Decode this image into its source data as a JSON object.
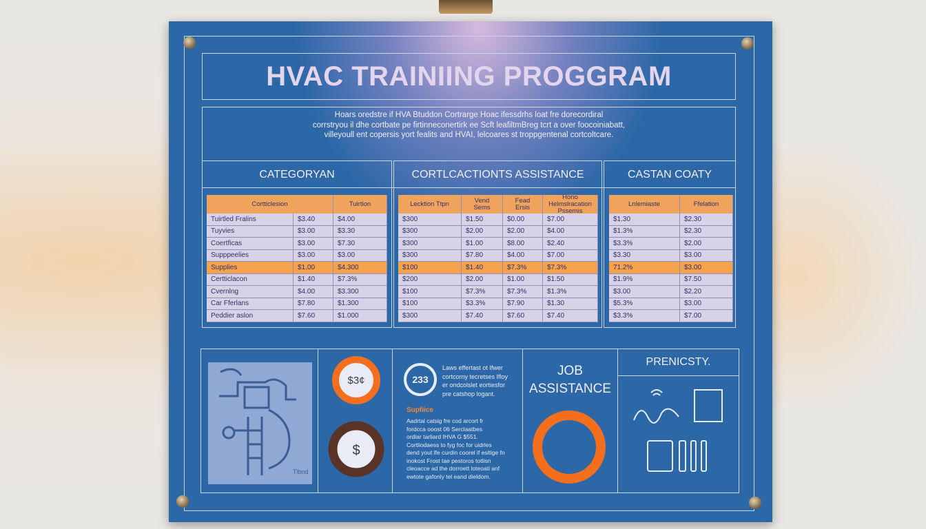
{
  "header": {
    "title": "HVAC TRAINIING PROGGRAM"
  },
  "intro": {
    "lines": [
      "Hoars oredstre if HVA Btuddon Cortrarge Hoac ifessdrhs loat fre dorecordiral",
      "corrstryou il dhe cortbate pe firtinneconertirk ee Scft leafiltmBreg tcrt a over foocoiniabatt,",
      "villeyoull ent copersis yort fealits and HVAI, lelcoares st troppgentenal cortcoltcare."
    ]
  },
  "columns": {
    "titles": [
      "CATEGORYAN",
      "CORTLCACTIONTS ASSISTANCE",
      "CASTAN COATY"
    ]
  },
  "tables": [
    {
      "headers": [
        "Cortticlesion",
        "Tuirtion"
      ],
      "rows": [
        [
          "Tuirtled Fralins",
          "$3.40",
          "$4.00"
        ],
        [
          "Tuyvies",
          "$3.00",
          "$3.30"
        ],
        [
          "Coertficas",
          "$3.00",
          "$7.30"
        ],
        [
          "Supppeelies",
          "$3.00",
          "$3.00"
        ],
        [
          "Supplies",
          "$1.00",
          "$4.300"
        ],
        [
          "Certticlacon",
          "$1.40",
          "$7.3%"
        ],
        [
          "Cvernlng",
          "$4.00",
          "$3.300"
        ],
        [
          "Car Fferlans",
          "$7.80",
          "$1.300"
        ],
        [
          "Peddier aslon",
          "$7.60",
          "$1.000"
        ]
      ]
    },
    {
      "headers": [
        "Lecktion Ttpn",
        "Vend Sems",
        "Fead Ersis",
        "Hono Helmslracation Pssemis"
      ],
      "rows": [
        [
          "$300",
          "$1.50",
          "$0.00",
          "$7.00"
        ],
        [
          "$300",
          "$2.00",
          "$2.00",
          "$4.00"
        ],
        [
          "$300",
          "$1.00",
          "$8.00",
          "$2.40"
        ],
        [
          "$300",
          "$7.80",
          "$4.00",
          "$7.00"
        ],
        [
          "$100",
          "$1.40",
          "$7.3%",
          "$7.3%"
        ],
        [
          "$200",
          "$2.00",
          "$1.00",
          "$1.50"
        ],
        [
          "$100",
          "$7.3%",
          "$7.3%",
          "$1.3%"
        ],
        [
          "$100",
          "$3.3%",
          "$7.90",
          "$1.30"
        ],
        [
          "$300",
          "$7.40",
          "$7.60",
          "$7.40"
        ]
      ]
    },
    {
      "headers": [
        "Lnlemiaste",
        "Ffelation"
      ],
      "rows": [
        [
          "$1.30",
          "$2.30"
        ],
        [
          "$1.3%",
          "$2.30"
        ],
        [
          "$3.3%",
          "$2.00"
        ],
        [
          "$3.30",
          "$3.00"
        ],
        [
          "71.2%",
          "$3.00"
        ],
        [
          "$1.9%",
          "$7.50"
        ],
        [
          "$3.00",
          "$2.20"
        ],
        [
          "$5.3%",
          "$3.00"
        ],
        [
          "$3.3%",
          "$7.00"
        ]
      ]
    }
  ],
  "panels": {
    "diagram_label": "Tlbnd",
    "badge_top": "$3¢",
    "badge_bottom": "$",
    "counter": "233",
    "counter_text": [
      "Laws effertast ot Ifwer",
      "cortcorny tecretses Ifloy",
      "er ondcolslet eortiesfor",
      "pre catshop logant."
    ],
    "supplies_title": "Supfiice",
    "supplies_text": [
      "Aadrtal catsig fre cod arcort fr",
      "fordcca ooost 06 Serclaatbes",
      "ordiar tarliard IHVA G $551.",
      "Cortliodaess to fyg foc for uidrles",
      "dend yout lfe curdin coorel if esltige fn",
      "inokost Frost tae pestoros totlisn",
      "cleoacce ad the dorroett loteoati anf",
      "ewtote gafonly tel eand dieldom."
    ],
    "job_title": [
      "JOB",
      "ASSISTANCE"
    ],
    "prenicsty": "PRENICSTY."
  }
}
